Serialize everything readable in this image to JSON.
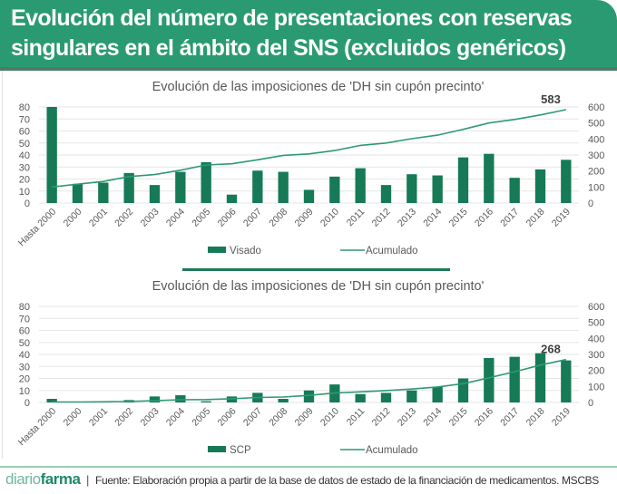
{
  "header": {
    "title": "Evolución del número de presentaciones con reservas singulares en el ámbito del SNS (excluidos genéricos)"
  },
  "colors": {
    "header_bg": "#2a9a72",
    "bar": "#167a57",
    "line": "#2e9a72",
    "grid": "#e6e6e6",
    "axis_text": "#595959"
  },
  "chart_data": [
    {
      "type": "bar",
      "title": "Evolución de las imposiciones de 'DH sin cupón precinto'",
      "categories": [
        "Hasta 2000",
        "2000",
        "2001",
        "2002",
        "2003",
        "2004",
        "2005",
        "2006",
        "2007",
        "2008",
        "2009",
        "2010",
        "2011",
        "2012",
        "2013",
        "2014",
        "2015",
        "2016",
        "2017",
        "2018",
        "2019"
      ],
      "series": [
        {
          "name": "Visado",
          "type": "bar",
          "axis": "left",
          "values": [
            80,
            16,
            17,
            25,
            15,
            26,
            34,
            7,
            27,
            26,
            11,
            22,
            29,
            15,
            24,
            23,
            38,
            41,
            21,
            28,
            36
          ]
        },
        {
          "name": "Acumulado",
          "type": "line",
          "axis": "right",
          "values": [
            100,
            118,
            135,
            165,
            178,
            205,
            238,
            245,
            270,
            298,
            307,
            328,
            360,
            375,
            402,
            424,
            460,
            500,
            522,
            550,
            583
          ]
        }
      ],
      "end_label": "583",
      "ylim_left": [
        0,
        80
      ],
      "yticks_left": [
        "0",
        "10",
        "20",
        "30",
        "40",
        "50",
        "60",
        "70",
        "80"
      ],
      "ylim_right": [
        0,
        600
      ],
      "yticks_right": [
        "0",
        "100",
        "200",
        "300",
        "400",
        "500",
        "600"
      ],
      "grid": true,
      "legend": "bottom",
      "legend_labels": [
        "Visado",
        "Acumulado"
      ]
    },
    {
      "type": "bar",
      "title": "Evolución de las imposiciones de 'DH sin cupón precinto'",
      "categories": [
        "Hasta 2000",
        "2000",
        "2001",
        "2002",
        "2003",
        "2004",
        "2005",
        "2006",
        "2007",
        "2008",
        "2009",
        "2010",
        "2011",
        "2012",
        "2013",
        "2014",
        "2015",
        "2016",
        "2017",
        "2018",
        "2019"
      ],
      "series": [
        {
          "name": "SCP",
          "type": "bar",
          "axis": "left",
          "values": [
            3,
            0,
            1,
            2,
            5,
            6,
            1,
            5,
            8,
            3,
            10,
            15,
            7,
            8,
            10,
            13,
            20,
            37,
            38,
            41,
            35
          ]
        },
        {
          "name": "Acumulado",
          "type": "line",
          "axis": "right",
          "values": [
            3,
            3,
            4,
            6,
            11,
            17,
            18,
            23,
            31,
            34,
            44,
            59,
            66,
            74,
            84,
            97,
            117,
            154,
            192,
            233,
            268
          ]
        }
      ],
      "end_label": "268",
      "ylim_left": [
        0,
        80
      ],
      "yticks_left": [
        "0",
        "10",
        "20",
        "30",
        "40",
        "50",
        "60",
        "70",
        "80"
      ],
      "ylim_right": [
        0,
        600
      ],
      "yticks_right": [
        "0",
        "100",
        "200",
        "300",
        "400",
        "500",
        "600"
      ],
      "grid": true,
      "legend": "bottom",
      "legend_labels": [
        "SCP",
        "Acumulado"
      ]
    }
  ],
  "footer": {
    "brand_light": "diario",
    "brand_bold": "farma",
    "separator": "|",
    "source": "Fuente: Elaboración propia a partir de la base de datos de estado de la financiación de medicamentos. MSCBS"
  }
}
